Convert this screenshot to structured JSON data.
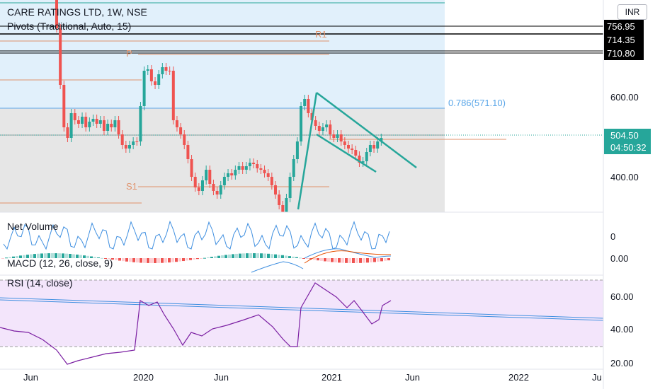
{
  "header": {
    "symbol_title": "CARE RATINGS LTD, 1W, NSE",
    "pivots_legend": "Pivots (Traditional, Auto, 15)"
  },
  "currency_button": "INR",
  "price_levels": [
    {
      "label": "756.95"
    },
    {
      "label": "714.35"
    },
    {
      "label": "710.80"
    }
  ],
  "price_axis": {
    "labels": [
      "600.00",
      "400.00"
    ],
    "current_price": "504.50",
    "countdown": "04:50:32",
    "current_color": "#26a69a"
  },
  "fib": {
    "label": "0.786(571.10)"
  },
  "pivots": {
    "p": "P",
    "r1": "R1",
    "s1": "S1"
  },
  "net_volume": {
    "title": "Net Volume",
    "axis_label": "0"
  },
  "macd": {
    "title": "MACD (12, 26, close, 9)",
    "axis_label": "0.00"
  },
  "rsi": {
    "title": "RSI (14, close)",
    "axis_labels": [
      "60.00",
      "40.00",
      "20.00"
    ]
  },
  "time_axis": {
    "labels": [
      "Jun",
      "2020",
      "Jun",
      "2021",
      "Jun",
      "2022",
      "Ju"
    ]
  },
  "colors": {
    "up": "#26a69a",
    "down": "#ef5350",
    "fib_blue": "#5aa6e8",
    "pivot": "#e0926b",
    "rsi": "#7b1fa2"
  }
}
